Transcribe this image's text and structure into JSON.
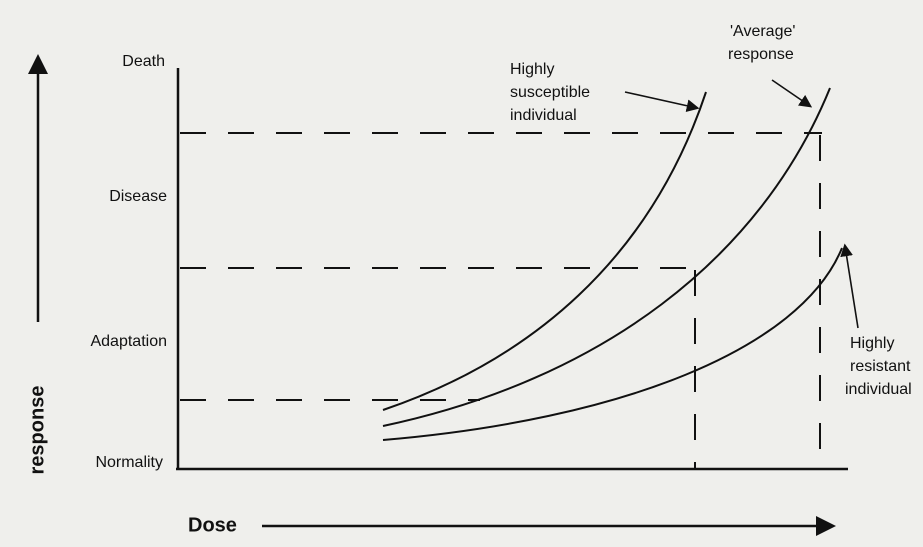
{
  "levels": [
    "Death",
    "Disease",
    "Adaptation",
    "Normality"
  ],
  "y_axis_label": "response",
  "x_axis_label": "Dose",
  "curves": [
    {
      "label": [
        "Highly",
        "susceptible",
        "individual"
      ]
    },
    {
      "label": [
        "'Average'",
        "response"
      ]
    },
    {
      "label": [
        "Highly",
        "resistant",
        "individual"
      ]
    }
  ]
}
